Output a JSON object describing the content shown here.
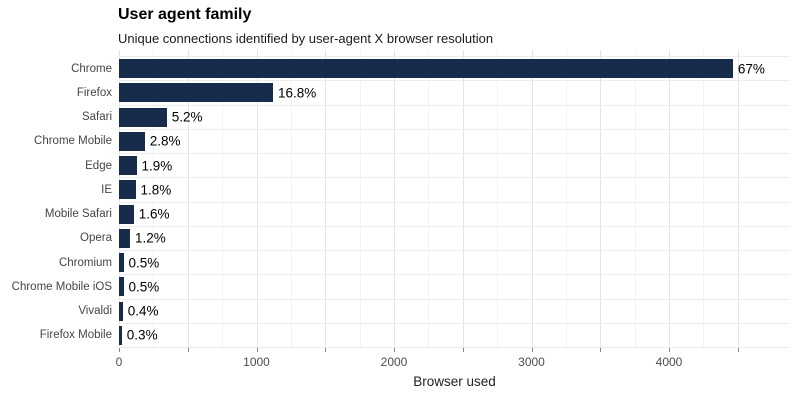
{
  "header": {
    "title": "User agent family",
    "subtitle": "Unique connections identified by user-agent X browser resolution"
  },
  "chart_data": {
    "type": "bar",
    "orientation": "horizontal",
    "title": "User agent family",
    "subtitle": "Unique connections identified by user-agent X browser resolution",
    "categories": [
      "Chrome",
      "Firefox",
      "Safari",
      "Chrome Mobile",
      "Edge",
      "IE",
      "Mobile Safari",
      "Opera",
      "Chromium",
      "Chrome Mobile iOS",
      "Vivaldi",
      "Firefox Mobile"
    ],
    "values": [
      4465,
      1120,
      347,
      187,
      127,
      120,
      107,
      80,
      33,
      33,
      27,
      20
    ],
    "percent_labels": [
      "67%",
      "16.8%",
      "5.2%",
      "2.8%",
      "1.9%",
      "1.8%",
      "1.6%",
      "1.2%",
      "0.5%",
      "0.5%",
      "0.4%",
      "0.3%"
    ],
    "xlabel": "Browser used",
    "ylabel": "",
    "xlim": [
      0,
      4880
    ],
    "x_tick_labels": [
      0,
      1000,
      2000,
      3000,
      4000
    ],
    "tick_step": 500,
    "grid_minor_step": 250,
    "grid_max": 4500,
    "grid": true,
    "legend": false,
    "colors": {
      "bar": "#172b4a",
      "grid_major": "#e4e4e4",
      "grid_minor": "#f2f2f2",
      "row_line": "#ececec",
      "tick": "#888888",
      "tick_label": "#4d4d4d",
      "category_label": "#454545",
      "value_label": "#000000",
      "title": "#000000",
      "axis_title": "#222222",
      "background": "#ffffff"
    }
  }
}
